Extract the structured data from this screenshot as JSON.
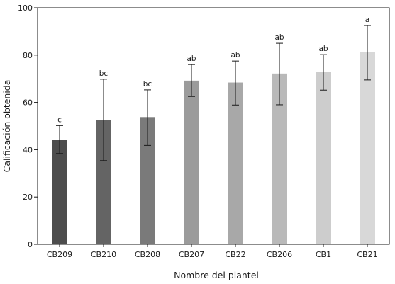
{
  "chart_data": {
    "type": "bar",
    "xlabel": "Nombre del plantel",
    "ylabel": "Calificación obtenida",
    "ylim": [
      0,
      100
    ],
    "yticks": [
      "0",
      "20",
      "40",
      "60",
      "80",
      "100"
    ],
    "categories": [
      "CB209",
      "CB210",
      "CB208",
      "CB207",
      "CB22",
      "CB206",
      "CB1",
      "CB21"
    ],
    "values": [
      44.2,
      52.6,
      53.8,
      69.2,
      68.4,
      72.2,
      73.0,
      81.3
    ],
    "error_low": [
      38.4,
      35.4,
      41.8,
      62.5,
      58.9,
      59.0,
      65.2,
      69.5
    ],
    "error_high": [
      50.2,
      69.8,
      65.3,
      76.0,
      77.5,
      85.0,
      80.2,
      92.5
    ],
    "significance": [
      "c",
      "bc",
      "bc",
      "ab",
      "ab",
      "ab",
      "ab",
      "a"
    ],
    "colors": [
      "#4d4d4d",
      "#646464",
      "#7a7a7a",
      "#9b9b9b",
      "#a8a8a8",
      "#b9b9b9",
      "#cdcdcd",
      "#d8d8d8"
    ],
    "error_bar_color": "#1a1a1a",
    "grid": false,
    "legend": "none"
  }
}
